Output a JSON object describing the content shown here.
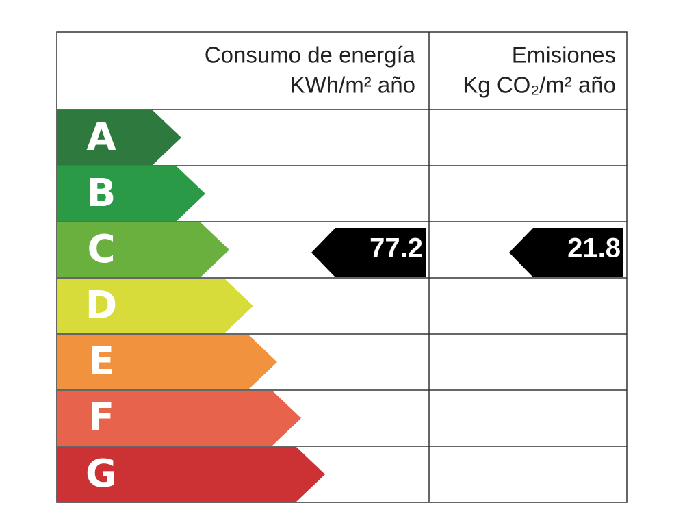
{
  "header": {
    "energy_title": "Consumo de energía",
    "energy_unit": "KWh/m² año",
    "emissions_title": "Emisiones",
    "emissions_unit": "Kg CO₂/m² año"
  },
  "ratings": [
    {
      "letter": "A",
      "color": "#2e7a3e"
    },
    {
      "letter": "B",
      "color": "#2a9a46"
    },
    {
      "letter": "C",
      "color": "#6ab03f"
    },
    {
      "letter": "D",
      "color": "#d7dc3a"
    },
    {
      "letter": "E",
      "color": "#f0923e"
    },
    {
      "letter": "F",
      "color": "#e8634b"
    },
    {
      "letter": "G",
      "color": "#cc3234"
    }
  ],
  "energy_value": 77.2,
  "emissions_value": 21.8
}
